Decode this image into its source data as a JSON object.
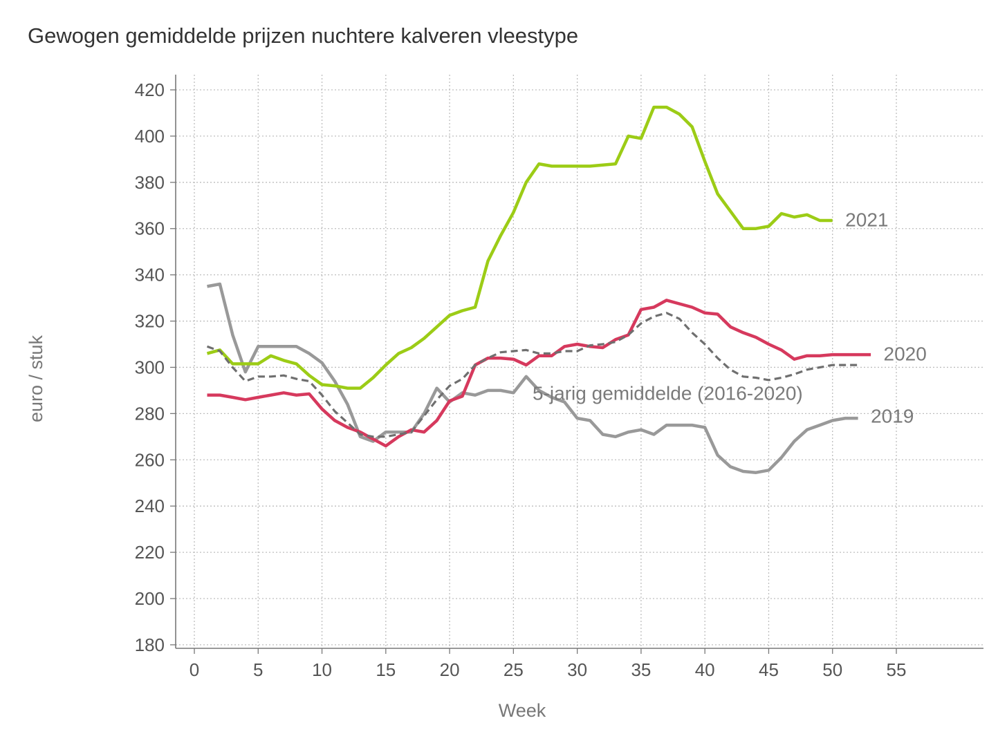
{
  "chart_data": {
    "type": "line",
    "title": "Gewogen gemiddelde prijzen nuchtere kalveren vleestype",
    "xlabel": "Week",
    "ylabel": "euro / stuk",
    "xlim": [
      -2,
      62
    ],
    "ylim": [
      179,
      427
    ],
    "xticks": [
      0,
      5,
      10,
      15,
      20,
      25,
      30,
      35,
      40,
      45,
      50,
      55
    ],
    "yticks": [
      420,
      400,
      380,
      360,
      340,
      320,
      300,
      280,
      260,
      240,
      220,
      200,
      180
    ],
    "grid": true,
    "legend": "none",
    "series": [
      {
        "name": "2019",
        "color": "#999999",
        "dash": "solid",
        "x": [
          1,
          2,
          3,
          4,
          5,
          6,
          7,
          8,
          9,
          10,
          11,
          12,
          13,
          14,
          15,
          16,
          17,
          18,
          19,
          20,
          21,
          22,
          23,
          24,
          25,
          26,
          27,
          28,
          29,
          30,
          31,
          32,
          33,
          34,
          35,
          36,
          37,
          38,
          39,
          40,
          41,
          42,
          43,
          44,
          45,
          46,
          47,
          48,
          49,
          50,
          51,
          52
        ],
        "values": [
          335,
          336,
          314,
          298,
          309,
          309,
          309,
          309,
          306,
          302,
          294,
          284,
          270,
          268,
          272,
          272,
          272,
          280,
          291,
          285,
          289,
          288,
          290,
          290,
          289,
          296,
          290,
          287,
          285,
          278,
          277,
          271,
          270,
          272,
          273,
          271,
          275,
          275,
          275,
          274,
          262,
          257,
          255,
          254.5,
          255.5,
          261,
          268,
          273,
          275,
          277,
          278,
          278
        ]
      },
      {
        "name": "2020",
        "color": "#d6395d",
        "dash": "solid",
        "x": [
          1,
          2,
          3,
          4,
          5,
          6,
          7,
          8,
          9,
          10,
          11,
          12,
          13,
          14,
          15,
          16,
          17,
          18,
          19,
          20,
          21,
          22,
          23,
          24,
          25,
          26,
          27,
          28,
          29,
          30,
          31,
          32,
          33,
          34,
          35,
          36,
          37,
          38,
          39,
          40,
          41,
          42,
          43,
          44,
          45,
          46,
          47,
          48,
          49,
          50,
          51,
          52,
          53
        ],
        "values": [
          288,
          288,
          287,
          286,
          287,
          288,
          289,
          288,
          288.5,
          282,
          277,
          274,
          272,
          269,
          266,
          270,
          273,
          272,
          277,
          285.5,
          287.5,
          301,
          304,
          304,
          303.5,
          301,
          305,
          305,
          309,
          310,
          309,
          308.5,
          312,
          314,
          325,
          326,
          329,
          327.5,
          326,
          323.5,
          323,
          317.5,
          315,
          313,
          310,
          307.5,
          303.5,
          305,
          305,
          305.5,
          305.5,
          305.5,
          305.5
        ]
      },
      {
        "name": "2021",
        "color": "#9ccc16",
        "dash": "solid",
        "x": [
          1,
          2,
          3,
          4,
          5,
          6,
          7,
          8,
          9,
          10,
          11,
          12,
          13,
          14,
          15,
          16,
          17,
          18,
          19,
          20,
          21,
          22,
          23,
          24,
          25,
          26,
          27,
          28,
          29,
          30,
          31,
          32,
          33,
          34,
          35,
          36,
          37,
          38,
          39,
          40,
          41,
          42,
          43,
          44,
          45,
          46,
          47,
          48,
          49,
          50
        ],
        "values": [
          306,
          307.5,
          301.5,
          301.5,
          301.5,
          305,
          303,
          301.5,
          296.5,
          292.5,
          292,
          291,
          291,
          295.5,
          301,
          306,
          308.5,
          312.5,
          317.5,
          322.5,
          324.5,
          326,
          346,
          357,
          367,
          380,
          388,
          387,
          387,
          387,
          387,
          387.5,
          388,
          400,
          399,
          412.5,
          412.5,
          409.5,
          404,
          389,
          375,
          367.5,
          360,
          360,
          361,
          366.5,
          365,
          366,
          363.5,
          363.5
        ]
      },
      {
        "name": "5-jarig gemiddelde (2016-2020)",
        "color": "#6f6f6f",
        "dash": "dashed",
        "x": [
          1,
          2,
          3,
          4,
          5,
          6,
          7,
          8,
          9,
          10,
          11,
          12,
          13,
          14,
          15,
          16,
          17,
          18,
          19,
          20,
          21,
          22,
          23,
          24,
          25,
          26,
          27,
          28,
          29,
          30,
          31,
          32,
          33,
          34,
          35,
          36,
          37,
          38,
          39,
          40,
          41,
          42,
          43,
          44,
          45,
          46,
          47,
          48,
          49,
          50,
          51,
          52
        ],
        "values": [
          309,
          307,
          300,
          294,
          296,
          296,
          296.5,
          295,
          294,
          288,
          281,
          276,
          271,
          270,
          270,
          271,
          272,
          279,
          286,
          292,
          295,
          301,
          304,
          306.5,
          307,
          307.5,
          306,
          306,
          307,
          307,
          309.5,
          310,
          311,
          314,
          319,
          322,
          323.5,
          321,
          315,
          310,
          304,
          299,
          296,
          295.5,
          294.5,
          295.5,
          297,
          299,
          300,
          301,
          301,
          301
        ]
      }
    ],
    "annotations": [
      {
        "text": "2021",
        "series": "2021",
        "anchor_week": 51,
        "anchor_value": 364
      },
      {
        "text": "2020",
        "series": "2020",
        "anchor_week": 54,
        "anchor_value": 306
      },
      {
        "text": "2019",
        "series": "2019",
        "anchor_week": 53,
        "anchor_value": 279
      },
      {
        "text": "5-jarig gemiddelde (2016-2020)",
        "series": "5-jarig gemiddelde (2016-2020)",
        "anchor_week": 26.5,
        "anchor_value": 289
      }
    ]
  }
}
